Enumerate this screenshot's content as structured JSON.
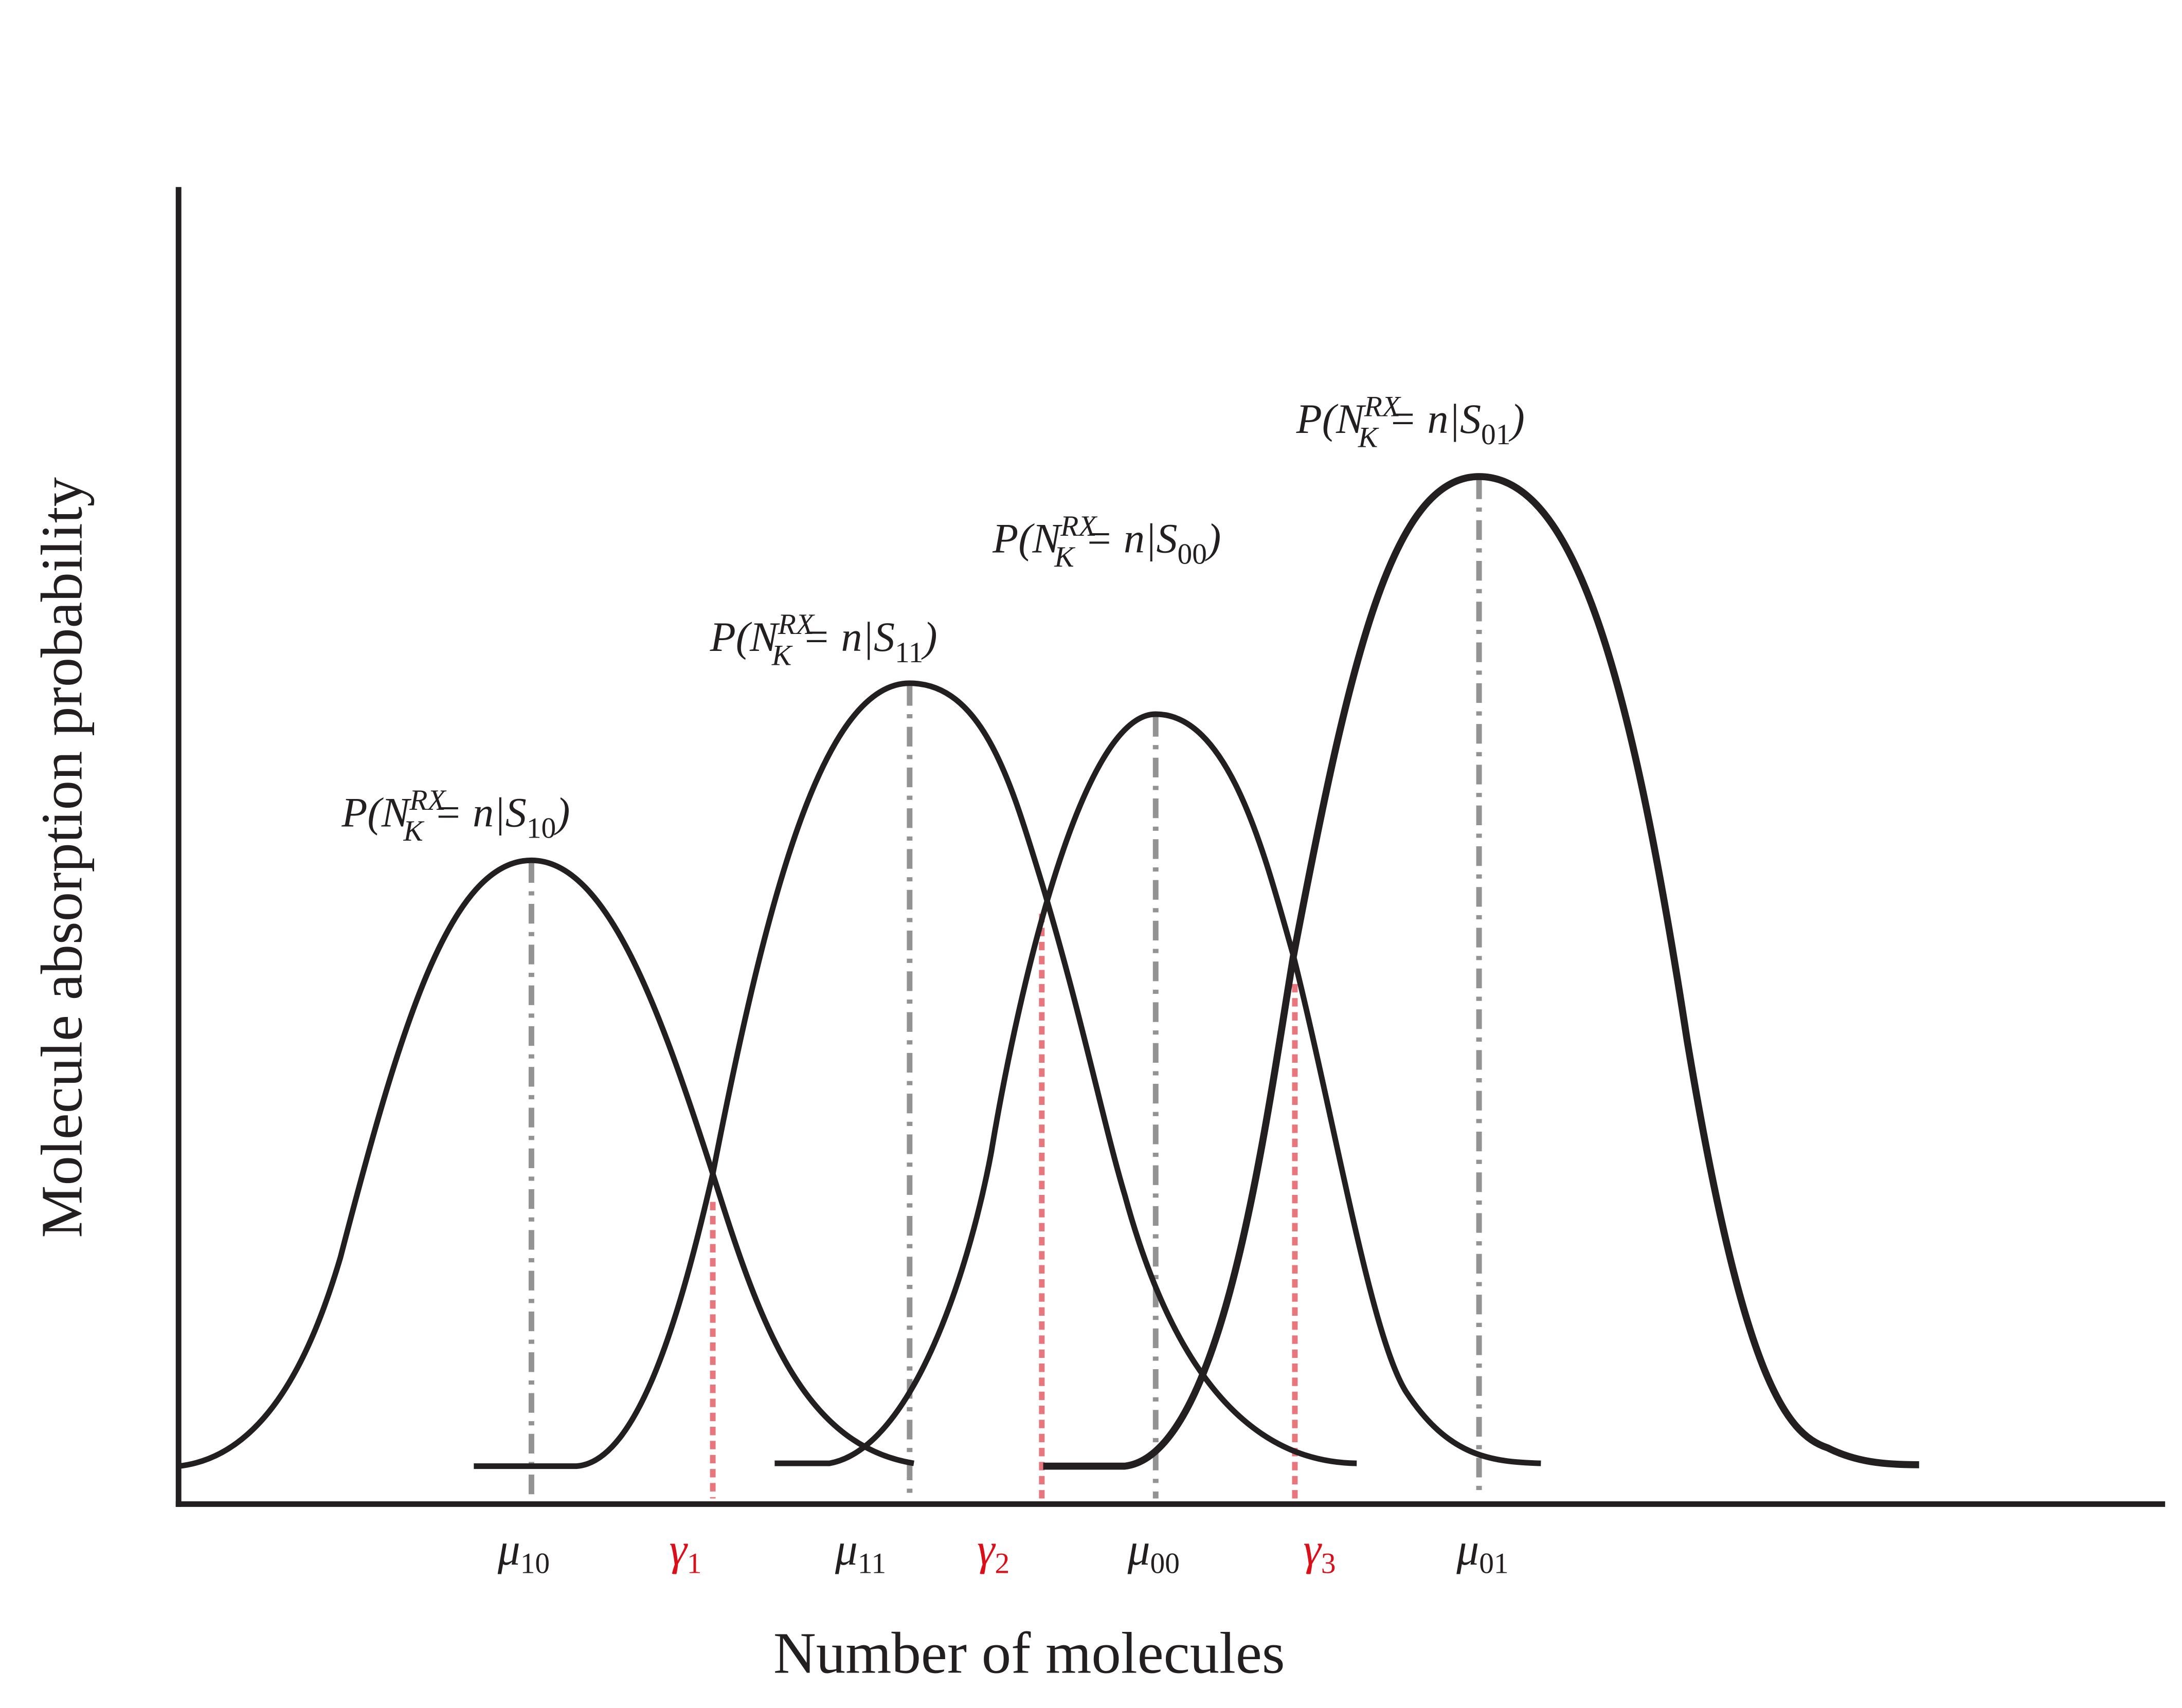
{
  "axes": {
    "x_label": "Number of molecules",
    "y_label": "Molecule absorption probability"
  },
  "curves": [
    {
      "p": "P(N",
      "sup": "RX",
      "sub": "K",
      "mid": " = n|S",
      "state": "10",
      "close": ")"
    },
    {
      "p": "P(N",
      "sup": "RX",
      "sub": "K",
      "mid": " = n|S",
      "state": "11",
      "close": ")"
    },
    {
      "p": "P(N",
      "sup": "RX",
      "sub": "K",
      "mid": " = n|S",
      "state": "00",
      "close": ")"
    },
    {
      "p": "P(N",
      "sup": "RX",
      "sub": "K",
      "mid": " = n|S",
      "state": "01",
      "close": ")"
    }
  ],
  "means": [
    {
      "symbol": "μ",
      "sub": "10"
    },
    {
      "symbol": "μ",
      "sub": "11"
    },
    {
      "symbol": "μ",
      "sub": "00"
    },
    {
      "symbol": "μ",
      "sub": "01"
    }
  ],
  "thresholds": [
    {
      "symbol": "γ",
      "sub": "1"
    },
    {
      "symbol": "γ",
      "sub": "2"
    },
    {
      "symbol": "γ",
      "sub": "3"
    }
  ]
}
